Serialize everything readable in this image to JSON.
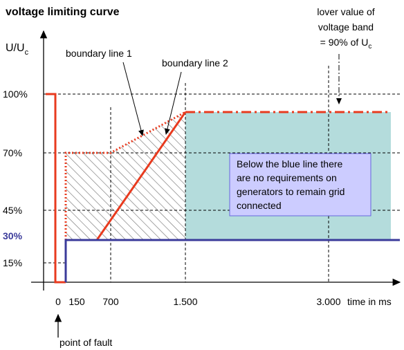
{
  "title": "voltage limiting curve",
  "y_axis_label": {
    "text": "U/U",
    "subscript": "c"
  },
  "band_note": {
    "lines": [
      "lover value of",
      "voltage band",
      "= 90% of U"
    ],
    "subscript": "c"
  },
  "y_labels": [
    "100%",
    "70%",
    "45%",
    "30%",
    "15%"
  ],
  "x_labels": [
    "0",
    "150",
    "700",
    "1.500",
    "3.000"
  ],
  "x_axis_label": "time in ms",
  "boundary_labels": [
    "boundary line 1",
    "boundary line 2"
  ],
  "info_box": [
    "Below the blue line there",
    "are no requirements on",
    "generators to remain grid",
    "connected"
  ],
  "fault_label": "point of fault"
}
